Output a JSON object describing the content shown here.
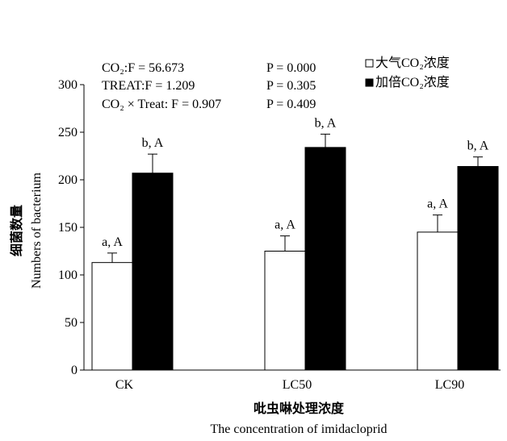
{
  "chart_data": {
    "type": "bar",
    "categories": [
      "CK",
      "LC50",
      "LC90"
    ],
    "series": [
      {
        "name": "大气CO₂浓度",
        "color": "#ffffff",
        "values": [
          113,
          125,
          145
        ],
        "errors": [
          10,
          16,
          18
        ],
        "labels": [
          "a, A",
          "a, A",
          "a, A"
        ]
      },
      {
        "name": "加倍CO₂浓度",
        "color": "#000000",
        "values": [
          207,
          234,
          214
        ],
        "errors": [
          20,
          14,
          10
        ],
        "labels": [
          "b, A",
          "b, A",
          "b, A"
        ]
      }
    ],
    "ylim": [
      0,
      300
    ],
    "yticks": [
      "0",
      "50",
      "100",
      "150",
      "200",
      "250",
      "300"
    ],
    "ylabel_cn": "细菌数量",
    "ylabel_en": "Numbers of bacterium",
    "xlabel_cn": "吡虫啉处理浓度",
    "xlabel_en": "The concentration of imidacloprid",
    "stats": [
      {
        "left": "CO₂:F = 56.673",
        "right": "P = 0.000"
      },
      {
        "left": "TREAT:F = 1.209",
        "right": "P = 0.305"
      },
      {
        "left": "CO₂ × Treat: F = 0.907",
        "right": "P = 0.409"
      }
    ],
    "legend_position": "top-right",
    "grid": false
  }
}
